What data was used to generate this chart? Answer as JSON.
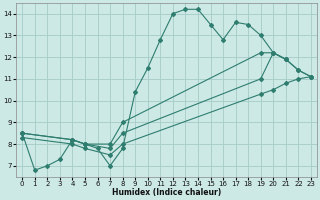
{
  "xlabel": "Humidex (Indice chaleur)",
  "background_color": "#cce9e6",
  "grid_color": "#aacfcb",
  "line_color": "#2e7d6e",
  "xlim": [
    -0.5,
    23.5
  ],
  "ylim": [
    6.5,
    14.5
  ],
  "yticks": [
    7,
    8,
    9,
    10,
    11,
    12,
    13,
    14
  ],
  "xticks": [
    0,
    1,
    2,
    3,
    4,
    5,
    6,
    7,
    8,
    9,
    10,
    11,
    12,
    13,
    14,
    15,
    16,
    17,
    18,
    19,
    20,
    21,
    22,
    23
  ],
  "lines": [
    {
      "x": [
        0,
        1,
        2,
        3,
        4,
        5,
        6,
        7,
        8,
        9,
        10,
        11,
        12,
        13,
        14,
        15,
        16,
        17,
        18,
        19,
        20,
        21
      ],
      "y": [
        8.5,
        6.8,
        7.0,
        7.3,
        8.2,
        8.0,
        7.8,
        7.0,
        7.8,
        10.4,
        11.5,
        12.8,
        14.0,
        14.2,
        14.2,
        13.5,
        12.8,
        13.6,
        13.5,
        13.0,
        12.2,
        11.9
      ]
    },
    {
      "x": [
        0,
        4,
        5,
        7,
        8,
        19,
        20,
        21,
        22,
        23
      ],
      "y": [
        8.5,
        8.2,
        8.0,
        8.0,
        9.0,
        12.2,
        12.2,
        11.9,
        11.4,
        11.1
      ]
    },
    {
      "x": [
        0,
        4,
        5,
        7,
        8,
        19,
        20,
        21,
        22,
        23
      ],
      "y": [
        8.5,
        8.2,
        8.0,
        7.8,
        8.5,
        11.0,
        12.2,
        11.9,
        11.4,
        11.1
      ]
    },
    {
      "x": [
        0,
        4,
        5,
        7,
        8,
        19,
        20,
        21,
        22,
        23
      ],
      "y": [
        8.3,
        8.0,
        7.8,
        7.5,
        8.0,
        10.3,
        10.5,
        10.8,
        11.0,
        11.1
      ]
    }
  ]
}
